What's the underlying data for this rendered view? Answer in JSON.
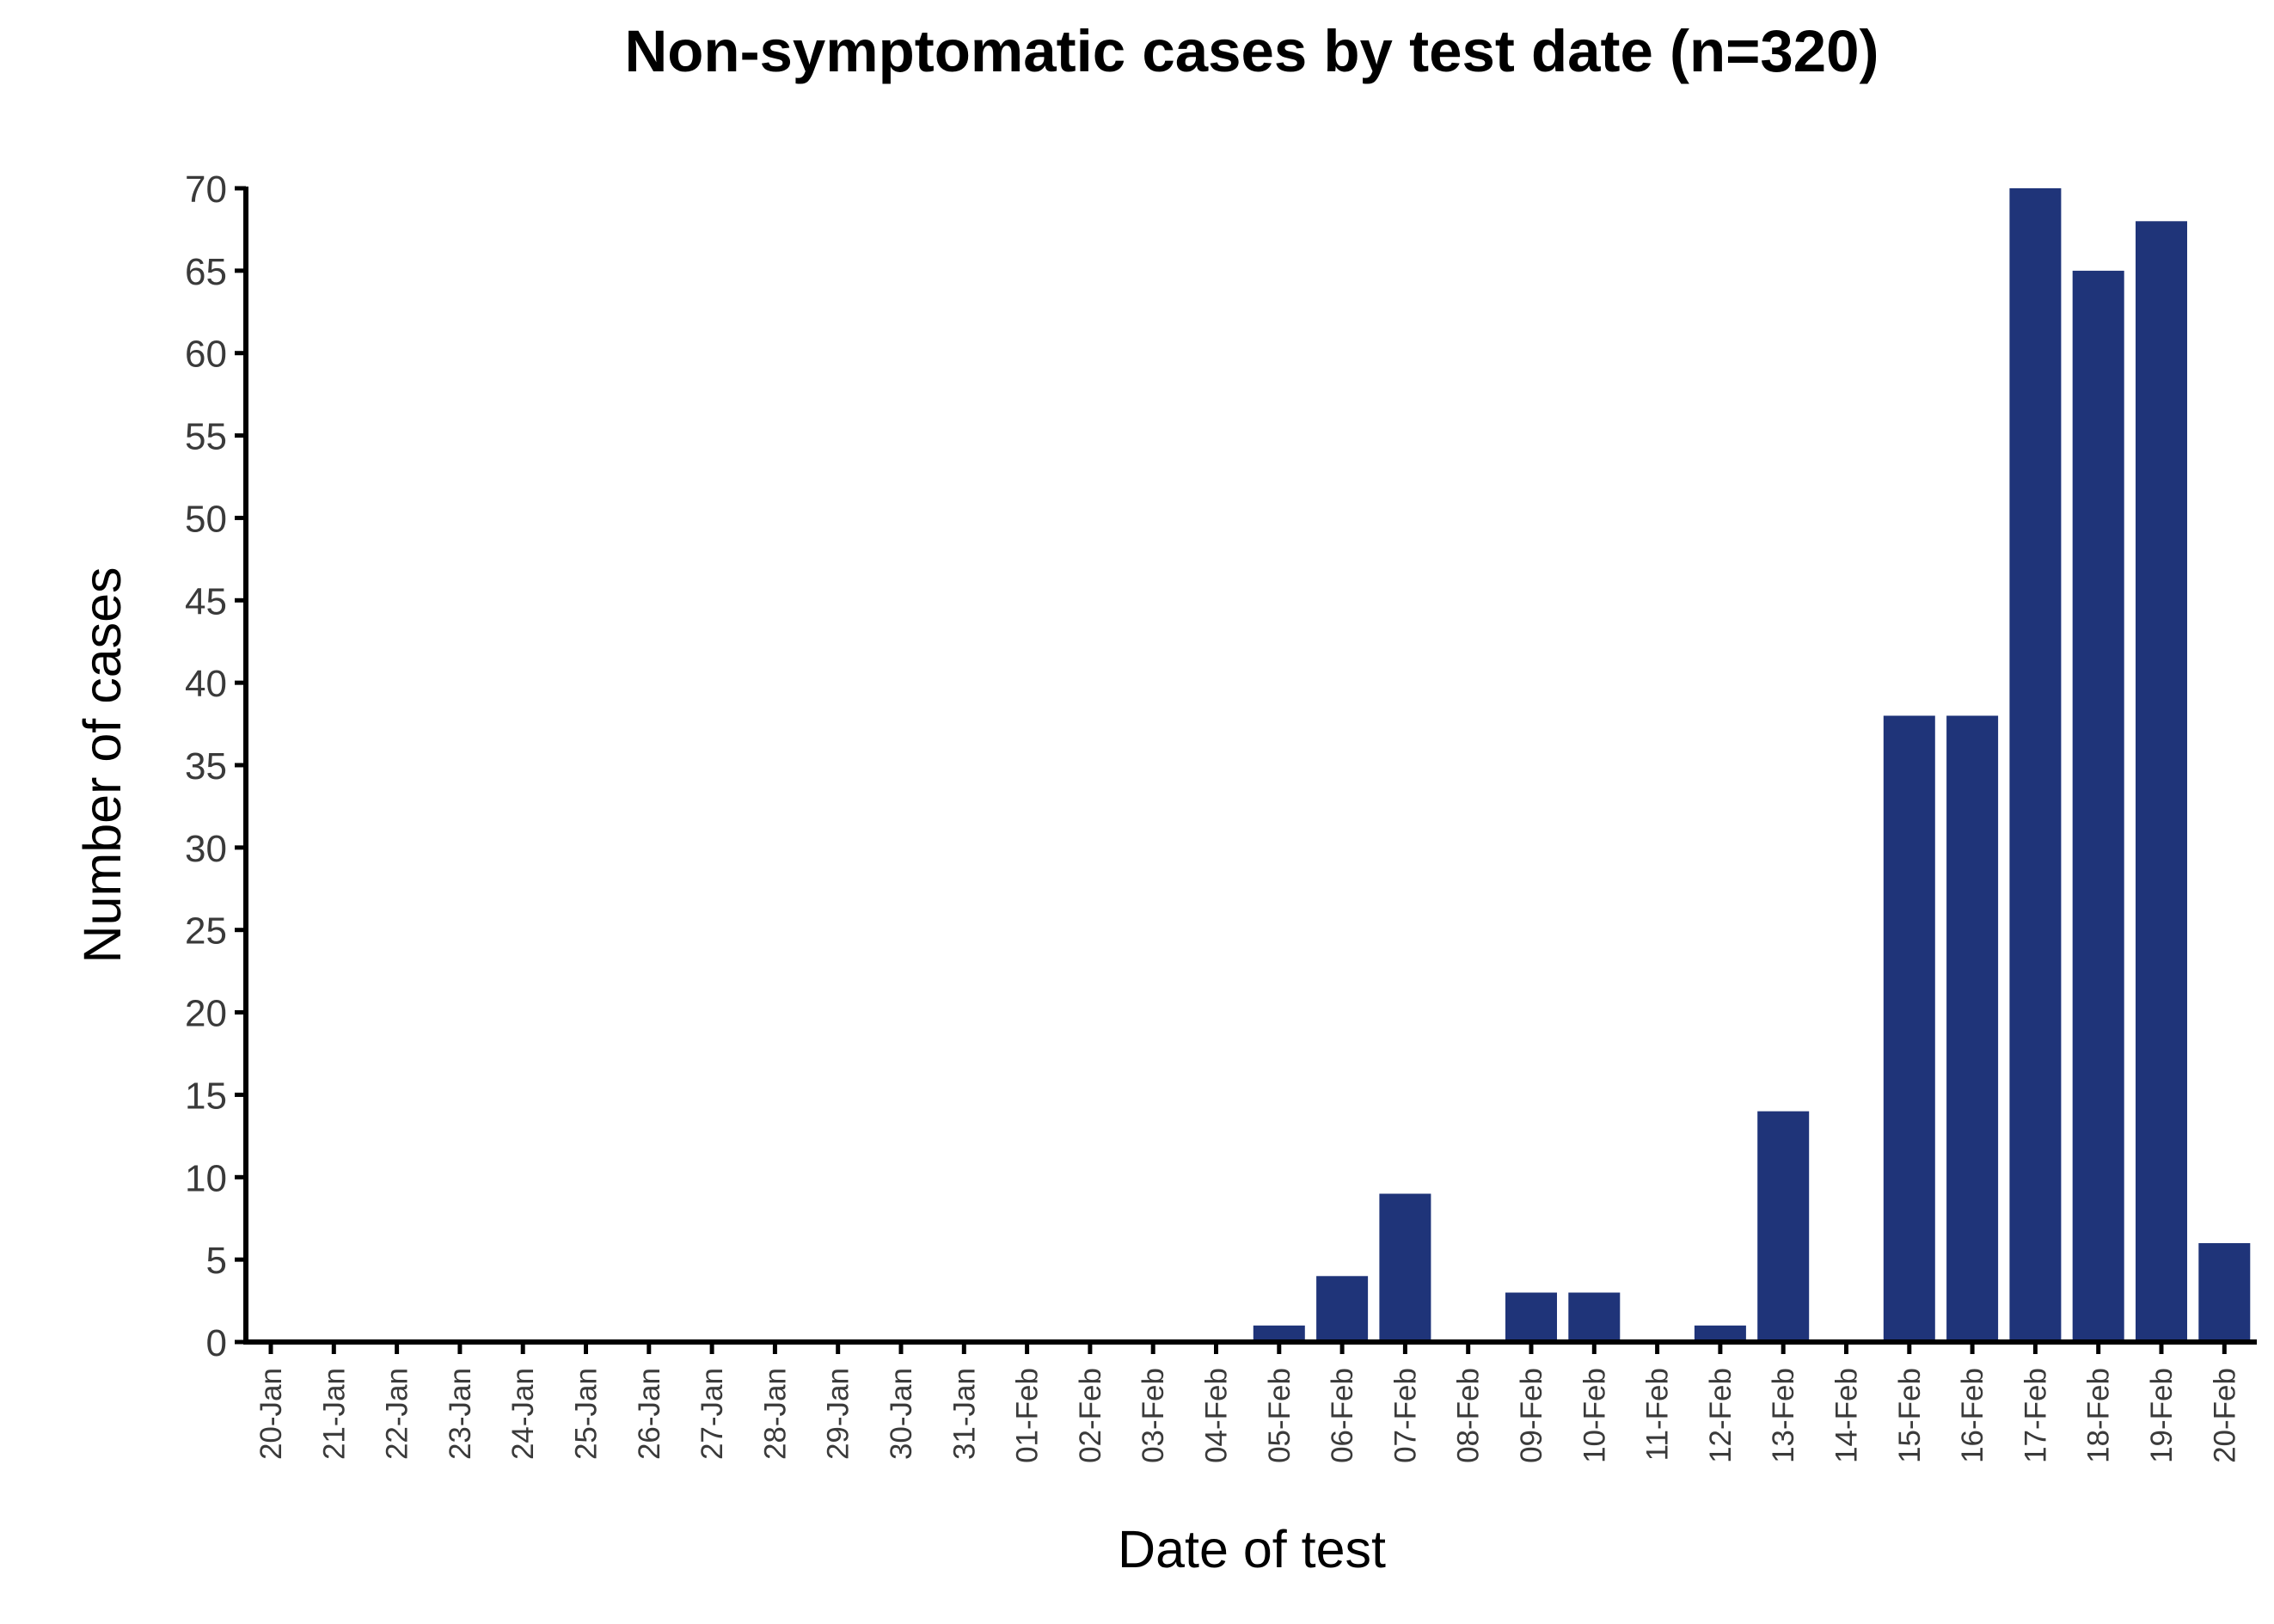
{
  "chart_data": {
    "type": "bar",
    "title": "Non-symptomatic cases by test date (n=320)",
    "xlabel": "Date of test",
    "ylabel": "Number of cases",
    "ylim": [
      0,
      70
    ],
    "yticks": [
      0,
      5,
      10,
      15,
      20,
      25,
      30,
      35,
      40,
      45,
      50,
      55,
      60,
      65,
      70
    ],
    "grid": false,
    "bar_color": "#1f3479",
    "categories": [
      "20-Jan",
      "21-Jan",
      "22-Jan",
      "23-Jan",
      "24-Jan",
      "25-Jan",
      "26-Jan",
      "27-Jan",
      "28-Jan",
      "29-Jan",
      "30-Jan",
      "31-Jan",
      "01-Feb",
      "02-Feb",
      "03-Feb",
      "04-Feb",
      "05-Feb",
      "06-Feb",
      "07-Feb",
      "08-Feb",
      "09-Feb",
      "10-Feb",
      "11-Feb",
      "12-Feb",
      "13-Feb",
      "14-Feb",
      "15-Feb",
      "16-Feb",
      "17-Feb",
      "18-Feb",
      "19-Feb",
      "20-Feb"
    ],
    "values": [
      0,
      0,
      0,
      0,
      0,
      0,
      0,
      0,
      0,
      0,
      0,
      0,
      0,
      0,
      0,
      0,
      1,
      4,
      9,
      0,
      3,
      3,
      0,
      1,
      14,
      0,
      38,
      38,
      70,
      65,
      68,
      6
    ]
  }
}
